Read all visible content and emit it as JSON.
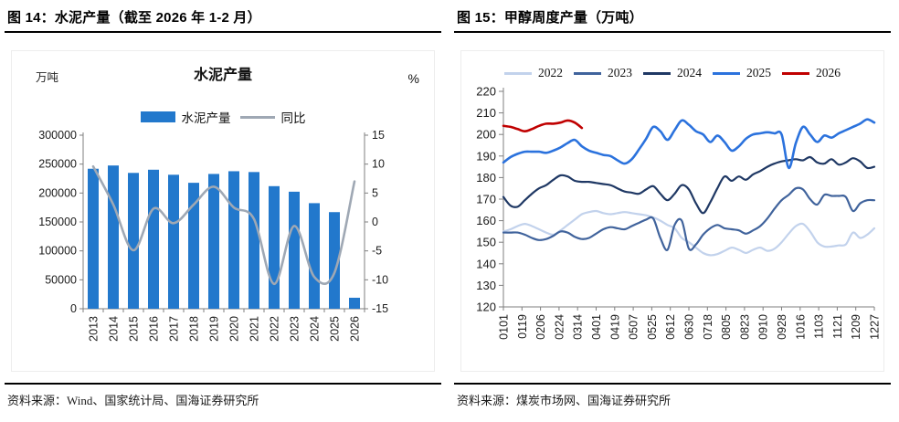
{
  "panels": [
    {
      "title": "图 14：水泥产量（截至 2026 年 1-2 月）",
      "source": "资料来源：Wind、国家统计局、国海证券研究所"
    },
    {
      "title": "图 15：甲醇周度产量（万吨）",
      "source": "资料来源：煤炭市场网、国海证券研究所"
    }
  ],
  "chart_data": [
    {
      "id": "cement",
      "type": "bar",
      "title": "水泥产量",
      "unit_left": "万吨",
      "unit_right": "%",
      "categories": [
        "2013",
        "2014",
        "2015",
        "2016",
        "2017",
        "2018",
        "2019",
        "2020",
        "2021",
        "2022",
        "2023",
        "2024",
        "2025",
        "2026"
      ],
      "ylim_left": [
        0,
        300000
      ],
      "ytick_left": 50000,
      "ylim_right": [
        -15,
        15
      ],
      "ytick_right": 5,
      "grid": false,
      "legend_position": "top",
      "axis_color": "#7f7f7f",
      "series": [
        {
          "name": "水泥产量",
          "type": "bar",
          "axis": "left",
          "color": "#2278cc",
          "values": [
            242000,
            247600,
            234800,
            240300,
            231600,
            217700,
            233000,
            237700,
            236300,
            211900,
            202300,
            182500,
            167000,
            19000
          ]
        },
        {
          "name": "同比",
          "type": "line",
          "axis": "right",
          "color": "#9fa8b4",
          "values": [
            9.6,
            3.0,
            -4.9,
            2.3,
            -0.2,
            3.0,
            6.1,
            2.5,
            0.5,
            -10.7,
            -0.7,
            -9.5,
            -8.8,
            7.0
          ]
        }
      ]
    },
    {
      "id": "methanol",
      "type": "line",
      "ylim": [
        120,
        220
      ],
      "ytick": 10,
      "grid": false,
      "legend_position": "top",
      "axis_color": "#7f7f7f",
      "x_labels": [
        "0101",
        "0119",
        "0206",
        "0224",
        "0314",
        "0401",
        "0419",
        "0507",
        "0525",
        "0612",
        "0630",
        "0718",
        "0805",
        "0823",
        "0910",
        "0928",
        "1016",
        "1103",
        "1121",
        "1209",
        "1227"
      ],
      "weeks_per_year": 52,
      "series": [
        {
          "name": "2022",
          "color": "#c2d2ec",
          "width": 2.2,
          "values": [
            155,
            156,
            157.5,
            158.5,
            157.5,
            156,
            154.5,
            153.5,
            155.5,
            158,
            160.5,
            163,
            164,
            164.5,
            163.5,
            163,
            163.5,
            164,
            163.5,
            163,
            162.5,
            161.5,
            160,
            158,
            156.5,
            152,
            150,
            147.5,
            145,
            144,
            144.5,
            146,
            147.5,
            146.5,
            145,
            146.5,
            147.5,
            146,
            147,
            150,
            154,
            157.5,
            158.5,
            155,
            150,
            148,
            148,
            148.5,
            149,
            154.5,
            152,
            153.5,
            156.5
          ]
        },
        {
          "name": "2023",
          "color": "#40639c",
          "width": 2.2,
          "values": [
            154.5,
            154.5,
            154.5,
            153.5,
            152,
            151,
            151.5,
            153,
            155,
            154.5,
            152.5,
            151.5,
            152,
            154,
            156,
            157,
            156.5,
            156,
            157.5,
            159,
            160.5,
            161,
            152,
            146.5,
            158,
            160,
            147,
            149,
            153.5,
            156.5,
            158,
            156.5,
            156,
            155.5,
            154,
            155.5,
            157.5,
            161,
            165.5,
            169.5,
            172,
            175,
            174.5,
            170,
            167.5,
            172,
            171.5,
            171.5,
            171,
            164.5,
            168,
            169.5,
            169.5
          ]
        },
        {
          "name": "2024",
          "color": "#1f3864",
          "width": 2.2,
          "values": [
            171,
            167,
            166.5,
            169.5,
            172.5,
            175,
            176.5,
            179,
            181,
            180.5,
            178.5,
            178,
            178,
            177.5,
            177,
            176.5,
            175,
            173.5,
            173,
            172.5,
            174.5,
            176,
            172.5,
            169.5,
            172.5,
            176.5,
            174.5,
            168,
            163.5,
            168.5,
            175,
            180.5,
            178.5,
            180.5,
            179,
            181.5,
            183,
            185,
            186.5,
            187.5,
            188,
            188.5,
            188,
            189.5,
            187,
            186.5,
            188.5,
            186,
            187,
            189,
            187.5,
            184.5,
            185
          ]
        },
        {
          "name": "2025",
          "color": "#2b72dd",
          "width": 2.6,
          "values": [
            187,
            189.5,
            191,
            192,
            192,
            192,
            191.5,
            192.5,
            194,
            196,
            197.5,
            194.5,
            192.5,
            191.5,
            190.5,
            190,
            188,
            186.5,
            188.5,
            193,
            198,
            203.5,
            201.5,
            197.5,
            202,
            206.5,
            204.5,
            201.5,
            200,
            196.5,
            199.5,
            196.5,
            192.5,
            194.5,
            198,
            200,
            200.5,
            201,
            200.5,
            200,
            184.5,
            196,
            203.5,
            200,
            196.5,
            199.5,
            198.5,
            200.5,
            202,
            203.5,
            205,
            207,
            205.5
          ]
        },
        {
          "name": "2026",
          "color": "#c00000",
          "width": 2.6,
          "values": [
            204,
            203.5,
            202.5,
            201.5,
            202.5,
            204,
            205,
            205,
            205.5,
            206.5,
            205.5,
            203
          ]
        }
      ]
    }
  ]
}
